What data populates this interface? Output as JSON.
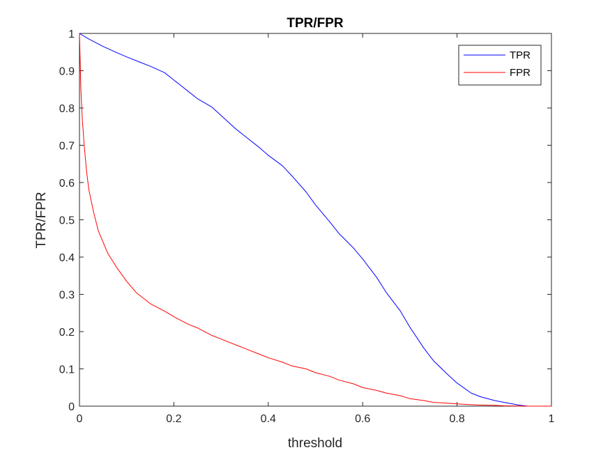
{
  "chart_data": {
    "type": "line",
    "title": "TPR/FPR",
    "xlabel": "threshold",
    "ylabel": "TPR/FPR",
    "xlim": [
      0,
      1
    ],
    "ylim": [
      0,
      1
    ],
    "xticks": [
      "0",
      "0.2",
      "0.4",
      "0.6",
      "0.8",
      "1"
    ],
    "yticks": [
      "0",
      "0.1",
      "0.2",
      "0.3",
      "0.4",
      "0.5",
      "0.6",
      "0.7",
      "0.8",
      "0.9",
      "1"
    ],
    "grid": false,
    "legend_position": "top-right",
    "series": [
      {
        "name": "TPR",
        "color": "#0000ff",
        "x": [
          0,
          0.02,
          0.05,
          0.08,
          0.1,
          0.13,
          0.15,
          0.18,
          0.2,
          0.23,
          0.25,
          0.28,
          0.3,
          0.33,
          0.35,
          0.38,
          0.4,
          0.43,
          0.45,
          0.48,
          0.5,
          0.53,
          0.55,
          0.58,
          0.6,
          0.63,
          0.65,
          0.68,
          0.7,
          0.73,
          0.75,
          0.78,
          0.8,
          0.83,
          0.85,
          0.88,
          0.9,
          0.93,
          0.95,
          0.97,
          1.0
        ],
        "y": [
          1.0,
          0.985,
          0.965,
          0.948,
          0.937,
          0.922,
          0.912,
          0.895,
          0.875,
          0.845,
          0.825,
          0.803,
          0.78,
          0.745,
          0.725,
          0.695,
          0.673,
          0.645,
          0.618,
          0.575,
          0.54,
          0.495,
          0.463,
          0.425,
          0.395,
          0.345,
          0.305,
          0.255,
          0.212,
          0.155,
          0.122,
          0.085,
          0.062,
          0.035,
          0.025,
          0.015,
          0.01,
          0.003,
          0.0,
          0.0,
          0.0
        ]
      },
      {
        "name": "FPR",
        "color": "#ff0000",
        "x": [
          0,
          0.003,
          0.006,
          0.01,
          0.015,
          0.02,
          0.03,
          0.04,
          0.05,
          0.06,
          0.08,
          0.1,
          0.12,
          0.15,
          0.18,
          0.2,
          0.23,
          0.25,
          0.28,
          0.3,
          0.33,
          0.35,
          0.38,
          0.4,
          0.43,
          0.45,
          0.48,
          0.5,
          0.53,
          0.55,
          0.58,
          0.6,
          0.63,
          0.65,
          0.68,
          0.7,
          0.73,
          0.75,
          0.78,
          0.8,
          0.83,
          0.85,
          0.88,
          0.9,
          0.95,
          1.0
        ],
        "y": [
          1.0,
          0.85,
          0.77,
          0.7,
          0.63,
          0.58,
          0.52,
          0.47,
          0.44,
          0.41,
          0.37,
          0.335,
          0.305,
          0.275,
          0.255,
          0.24,
          0.22,
          0.21,
          0.19,
          0.18,
          0.165,
          0.155,
          0.14,
          0.13,
          0.118,
          0.108,
          0.1,
          0.09,
          0.08,
          0.07,
          0.06,
          0.05,
          0.042,
          0.035,
          0.028,
          0.02,
          0.015,
          0.01,
          0.008,
          0.006,
          0.004,
          0.003,
          0.002,
          0.001,
          0.0,
          0.0
        ]
      }
    ]
  }
}
